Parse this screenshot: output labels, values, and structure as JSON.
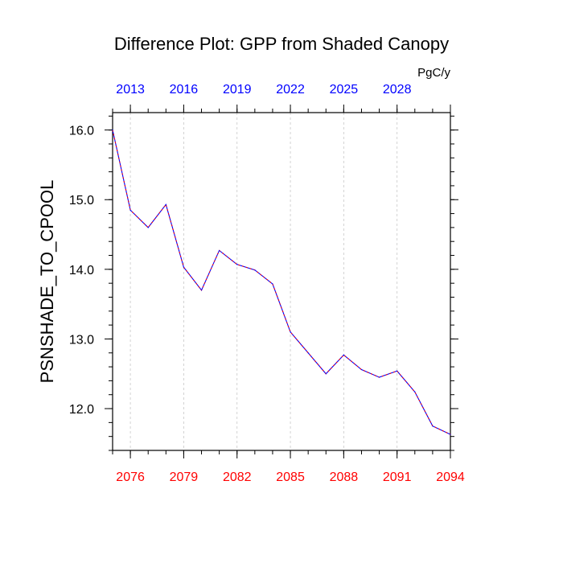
{
  "chart_data": {
    "type": "line",
    "title": "Difference Plot: GPP from Shaded Canopy",
    "units": "PgC/y",
    "ylabel": "PSNSHADE_TO_CPOOL",
    "xlabel": "",
    "xlim": [
      2075,
      2094
    ],
    "ylim": [
      11.4,
      16.25
    ],
    "grid": "vertical dashed at labeled bottom ticks",
    "x": [
      2075,
      2076,
      2077,
      2078,
      2079,
      2080,
      2081,
      2082,
      2083,
      2084,
      2085,
      2086,
      2087,
      2088,
      2089,
      2090,
      2091,
      2092,
      2093,
      2094
    ],
    "series": [
      {
        "name": "PSNSHADE_TO_CPOOL",
        "color": "#0000ff",
        "dash_color": "#ff0000",
        "values": [
          16.0,
          14.85,
          14.6,
          14.93,
          14.03,
          13.7,
          14.27,
          14.07,
          13.99,
          13.79,
          13.1,
          12.8,
          12.5,
          12.77,
          12.56,
          12.45,
          12.54,
          12.24,
          11.75,
          11.63
        ]
      }
    ],
    "yticks": [
      {
        "value": 12.0,
        "label": "12.0"
      },
      {
        "value": 13.0,
        "label": "13.0"
      },
      {
        "value": 14.0,
        "label": "14.0"
      },
      {
        "value": 15.0,
        "label": "15.0"
      },
      {
        "value": 16.0,
        "label": "16.0"
      }
    ],
    "bottom_axis": {
      "color": "#ff0000",
      "ticks": [
        {
          "value": 2076,
          "label": "2076"
        },
        {
          "value": 2079,
          "label": "2079"
        },
        {
          "value": 2082,
          "label": "2082"
        },
        {
          "value": 2085,
          "label": "2085"
        },
        {
          "value": 2088,
          "label": "2088"
        },
        {
          "value": 2091,
          "label": "2091"
        },
        {
          "value": 2094,
          "label": "2094"
        }
      ]
    },
    "top_axis": {
      "color": "#0000ff",
      "ticks": [
        {
          "value": 2076,
          "label": "2013"
        },
        {
          "value": 2079,
          "label": "2016"
        },
        {
          "value": 2082,
          "label": "2019"
        },
        {
          "value": 2085,
          "label": "2022"
        },
        {
          "value": 2088,
          "label": "2025"
        },
        {
          "value": 2091,
          "label": "2028"
        }
      ]
    }
  }
}
